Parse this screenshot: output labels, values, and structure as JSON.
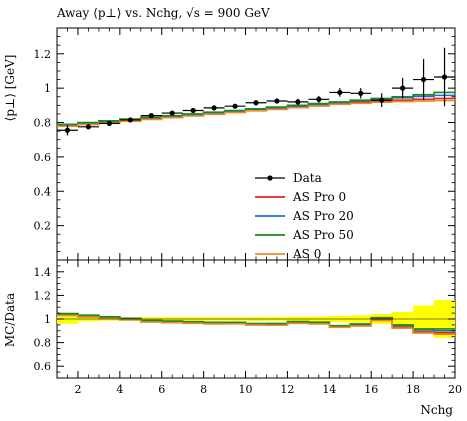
{
  "chart_data": {
    "type": "line",
    "title": "Away ⟨p⊥⟩ vs. Nchg, √s = 900 GeV",
    "xlabel": "Nchg",
    "ylabel": "⟨p⊥⟩ [GeV]",
    "ratio_ylabel": "MC/Data",
    "xlim": [
      1,
      20
    ],
    "ylim": [
      0,
      1.35
    ],
    "ratio_ylim": [
      0.5,
      1.5
    ],
    "x_ticks": [
      2,
      4,
      6,
      8,
      10,
      12,
      14,
      16,
      18,
      20
    ],
    "y_ticks": [
      0.2,
      0.4,
      0.6,
      0.8,
      1,
      1.2
    ],
    "ratio_y_ticks": [
      0.6,
      0.8,
      1,
      1.2,
      1.4
    ],
    "bin_edges": [
      1,
      2,
      3,
      4,
      5,
      6,
      7,
      8,
      9,
      10,
      11,
      12,
      13,
      14,
      15,
      16,
      17,
      18,
      19,
      20
    ],
    "data": {
      "name": "Data",
      "x": [
        1.5,
        2.5,
        3.5,
        4.5,
        5.5,
        6.5,
        7.5,
        8.5,
        9.5,
        10.5,
        11.5,
        12.5,
        13.5,
        14.5,
        15.5,
        16.5,
        17.5,
        18.5,
        19.5
      ],
      "y": [
        0.755,
        0.775,
        0.795,
        0.815,
        0.84,
        0.855,
        0.87,
        0.885,
        0.895,
        0.915,
        0.925,
        0.92,
        0.935,
        0.975,
        0.97,
        0.93,
        1.0,
        1.05,
        1.065
      ],
      "yerr": [
        0.03,
        0.015,
        0.012,
        0.012,
        0.012,
        0.012,
        0.012,
        0.012,
        0.012,
        0.015,
        0.015,
        0.018,
        0.02,
        0.025,
        0.03,
        0.04,
        0.06,
        0.12,
        0.17
      ]
    },
    "series": [
      {
        "name": "AS Pro 0",
        "color": "#e8231e",
        "values": [
          0.782,
          0.792,
          0.802,
          0.812,
          0.822,
          0.832,
          0.842,
          0.852,
          0.862,
          0.872,
          0.88,
          0.89,
          0.9,
          0.91,
          0.918,
          0.925,
          0.93,
          0.935,
          0.94
        ]
      },
      {
        "name": "AS Pro 20",
        "color": "#1f6fd6",
        "values": [
          0.786,
          0.796,
          0.806,
          0.816,
          0.826,
          0.836,
          0.846,
          0.856,
          0.866,
          0.876,
          0.886,
          0.896,
          0.906,
          0.916,
          0.926,
          0.936,
          0.944,
          0.952,
          0.958
        ]
      },
      {
        "name": "AS Pro 50",
        "color": "#1b8a1b",
        "values": [
          0.79,
          0.8,
          0.81,
          0.82,
          0.83,
          0.84,
          0.85,
          0.86,
          0.87,
          0.88,
          0.89,
          0.9,
          0.91,
          0.92,
          0.93,
          0.94,
          0.95,
          0.962,
          0.975
        ]
      },
      {
        "name": "AS 0",
        "color": "#f08a24",
        "values": [
          0.778,
          0.788,
          0.798,
          0.808,
          0.818,
          0.828,
          0.838,
          0.848,
          0.858,
          0.868,
          0.876,
          0.886,
          0.896,
          0.906,
          0.912,
          0.918,
          0.922,
          0.925,
          0.928
        ]
      }
    ],
    "ratio_band": {
      "color": "#ffff00",
      "lo": [
        0.96,
        0.98,
        0.985,
        0.985,
        0.985,
        0.985,
        0.985,
        0.985,
        0.985,
        0.984,
        0.984,
        0.98,
        0.979,
        0.974,
        0.969,
        0.957,
        0.94,
        0.886,
        0.84
      ],
      "hi": [
        1.04,
        1.02,
        1.015,
        1.015,
        1.015,
        1.015,
        1.015,
        1.015,
        1.015,
        1.016,
        1.016,
        1.02,
        1.021,
        1.026,
        1.031,
        1.043,
        1.06,
        1.114,
        1.16
      ]
    },
    "legend_position": "bottom-right",
    "grid": false
  }
}
